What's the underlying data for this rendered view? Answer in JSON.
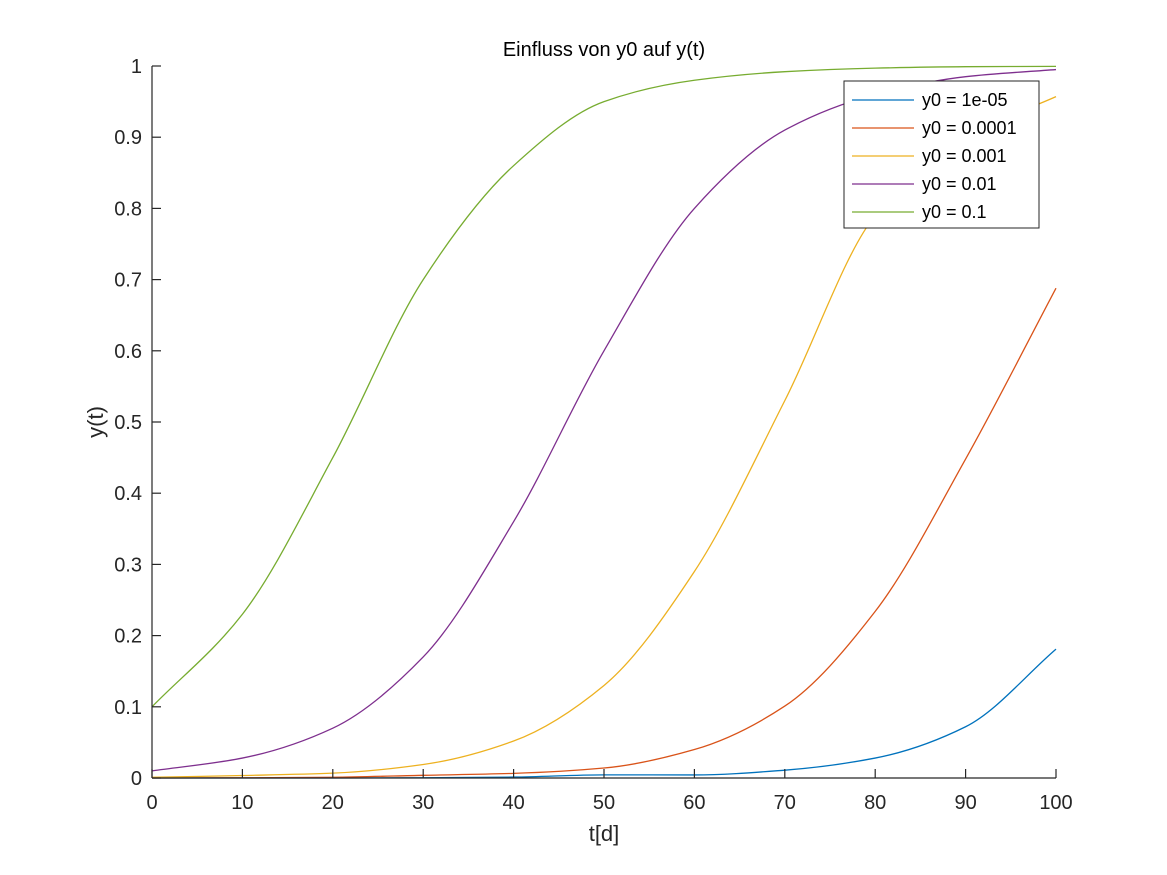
{
  "chart_data": {
    "type": "line",
    "title": "Einfluss von y0 auf y(t)",
    "xlabel": "t[d]",
    "ylabel": "y(t)",
    "xlim": [
      0,
      100
    ],
    "ylim": [
      0,
      1
    ],
    "x_ticks": [
      0,
      10,
      20,
      30,
      40,
      50,
      60,
      70,
      80,
      90,
      100
    ],
    "x_tick_labels": [
      "0",
      "10",
      "20",
      "30",
      "40",
      "50",
      "60",
      "70",
      "80",
      "90",
      "100"
    ],
    "y_ticks": [
      0,
      0.1,
      0.2,
      0.3,
      0.4,
      0.5,
      0.6,
      0.7,
      0.8,
      0.9,
      1
    ],
    "y_tick_labels": [
      "0",
      "0.1",
      "0.2",
      "0.3",
      "0.4",
      "0.5",
      "0.6",
      "0.7",
      "0.8",
      "0.9",
      "1"
    ],
    "grid": false,
    "legend_position": "top-right",
    "x": [
      0,
      10,
      20,
      30,
      40,
      50,
      60,
      70,
      80,
      90,
      100
    ],
    "series": [
      {
        "name": "y0 = 1e-05",
        "color": "#0072BD",
        "values": [
          1e-05,
          3e-05,
          0.00011,
          0.00038,
          0.0013,
          0.0044,
          0.0043,
          0.011,
          0.028,
          0.072,
          0.181
        ]
      },
      {
        "name": "y0 = 0.0001",
        "color": "#D95319",
        "values": [
          0.0001,
          0.0003,
          0.0011,
          0.0038,
          0.0065,
          0.014,
          0.04,
          0.101,
          0.234,
          0.448,
          0.688
        ]
      },
      {
        "name": "y0 = 0.001",
        "color": "#EDB120",
        "values": [
          0.001,
          0.0035,
          0.0068,
          0.019,
          0.052,
          0.13,
          0.29,
          0.53,
          0.79,
          0.9,
          0.957
        ]
      },
      {
        "name": "y0 = 0.01",
        "color": "#7E2F8E",
        "values": [
          0.01,
          0.028,
          0.07,
          0.17,
          0.36,
          0.6,
          0.8,
          0.91,
          0.96,
          0.985,
          0.995
        ]
      },
      {
        "name": "y0 = 0.1",
        "color": "#77AC30",
        "values": [
          0.1,
          0.23,
          0.45,
          0.7,
          0.86,
          0.95,
          0.98,
          0.992,
          0.997,
          0.999,
          0.9995
        ]
      }
    ]
  }
}
